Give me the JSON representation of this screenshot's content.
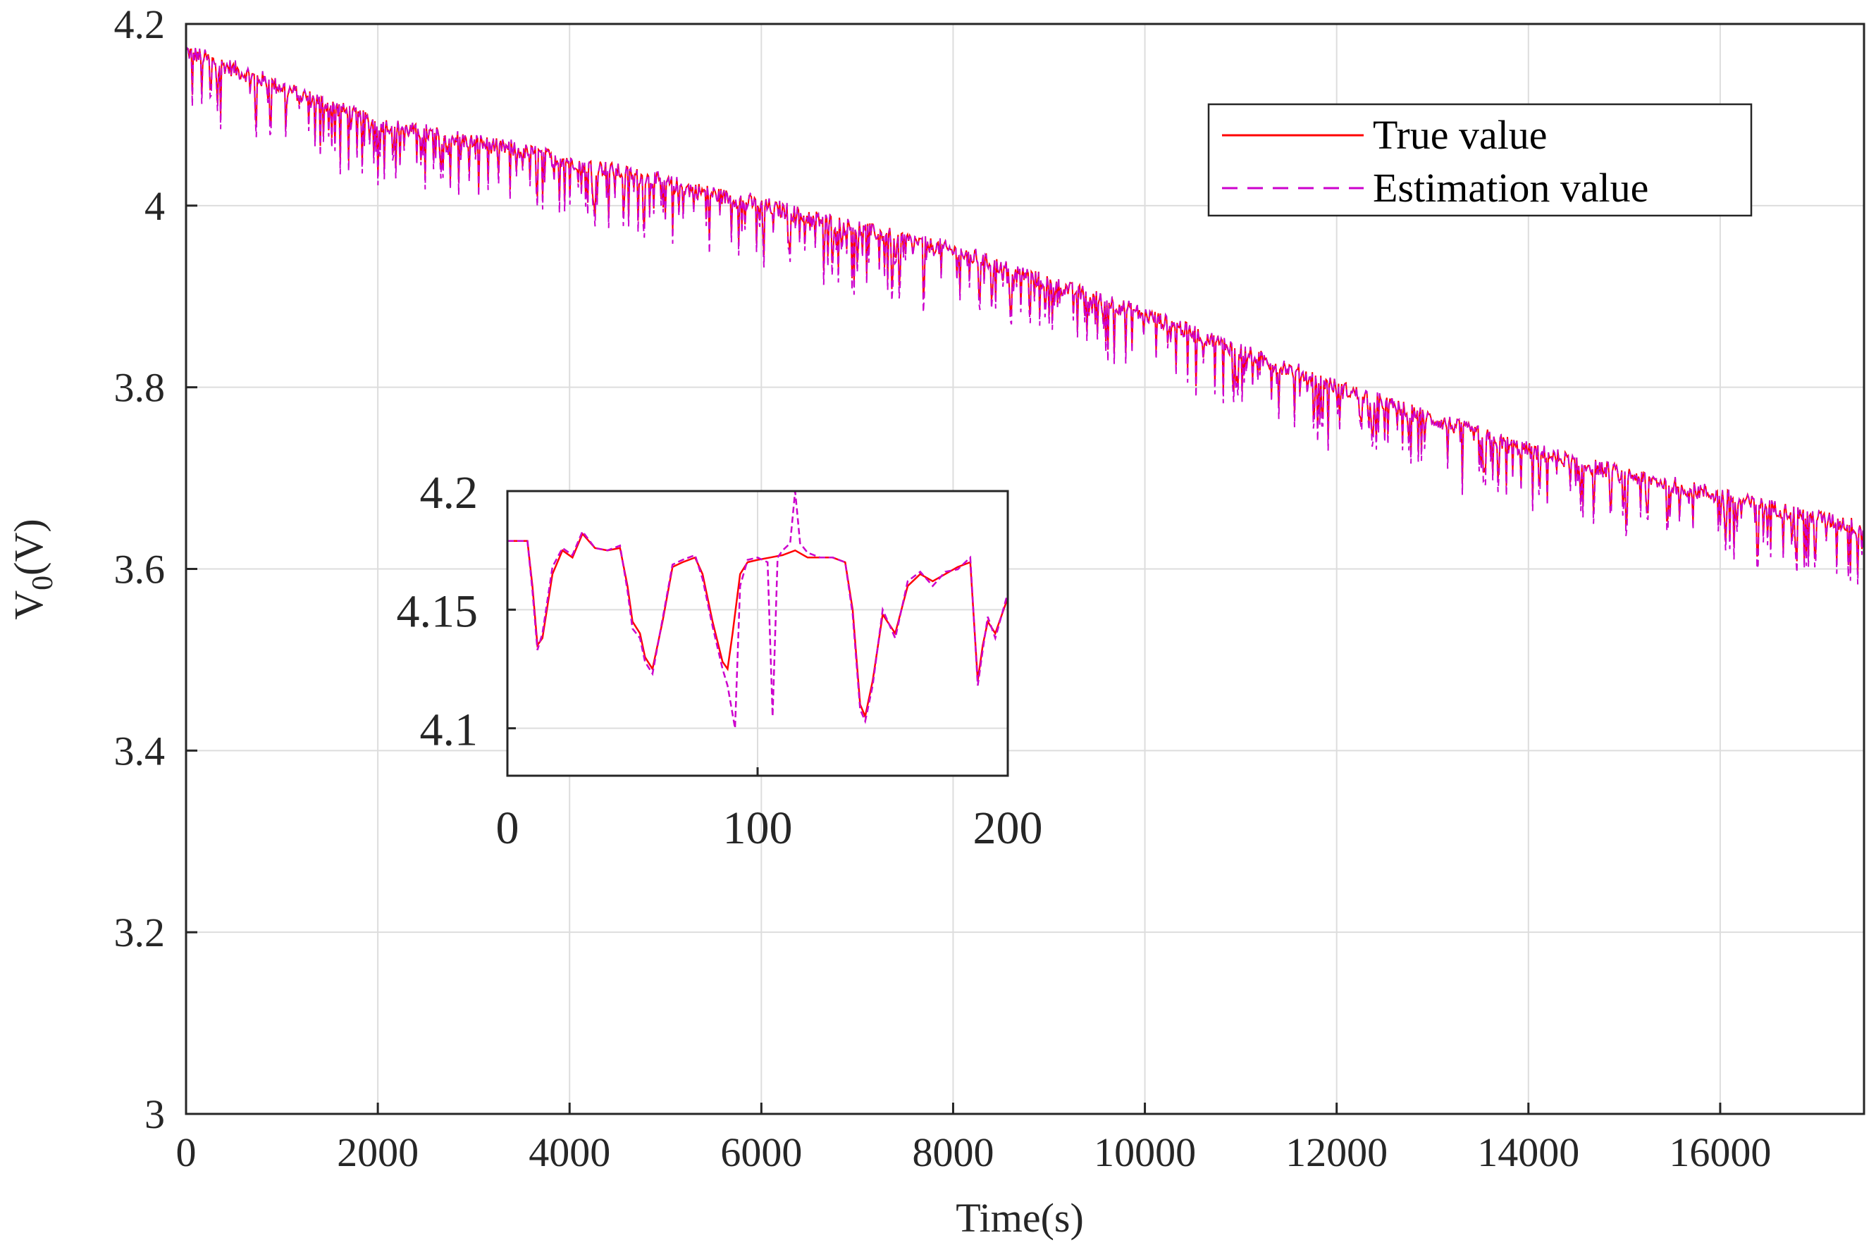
{
  "chart_data": [
    {
      "type": "line",
      "xlabel": "Time(s)",
      "ylabel_main": "V",
      "ylabel_sub": "0",
      "ylabel_unit": "(V)",
      "xlim": [
        0,
        17500
      ],
      "ylim": [
        3,
        4.2
      ],
      "xticks": [
        0,
        2000,
        4000,
        6000,
        8000,
        10000,
        12000,
        14000,
        16000
      ],
      "yticks": [
        3,
        3.2,
        3.4,
        3.6,
        3.8,
        4,
        4.2
      ],
      "xtick_labels": [
        "0",
        "2000",
        "4000",
        "6000",
        "8000",
        "10000",
        "12000",
        "14000",
        "16000"
      ],
      "ytick_labels": [
        "3",
        "3.2",
        "3.4",
        "3.6",
        "3.8",
        "4",
        "4.2"
      ],
      "grid": true,
      "legend_position": "top-right",
      "series": [
        {
          "name": "True value",
          "style": "solid",
          "color": "#ff0000",
          "trend_x": [
            0,
            2000,
            4000,
            6000,
            8000,
            10000,
            12000,
            14000,
            16000,
            17500
          ],
          "trend_y": [
            4.17,
            4.09,
            4.05,
            4.0,
            3.95,
            3.88,
            3.8,
            3.73,
            3.68,
            3.645
          ],
          "dip_depth": 0.04
        },
        {
          "name": "Estimation value",
          "style": "dashed",
          "color": "#cc00cc",
          "trend_x": [
            0,
            2000,
            4000,
            6000,
            8000,
            10000,
            12000,
            14000,
            16000,
            17500
          ],
          "trend_y": [
            4.17,
            4.09,
            4.05,
            4.0,
            3.95,
            3.88,
            3.8,
            3.73,
            3.68,
            3.645
          ],
          "dip_depth": 0.05
        }
      ]
    },
    {
      "type": "line",
      "role": "inset",
      "xlim": [
        0,
        200
      ],
      "ylim": [
        4.08,
        4.2
      ],
      "xticks": [
        0,
        100,
        200
      ],
      "yticks": [
        4.1,
        4.15,
        4.2
      ],
      "xtick_labels": [
        "0",
        "100",
        "200"
      ],
      "ytick_labels": [
        "4.1",
        "4.15",
        "4.2"
      ],
      "series": [
        {
          "name": "True value",
          "color": "#ff0000",
          "x": [
            0,
            8,
            10,
            12,
            14,
            18,
            22,
            26,
            30,
            35,
            40,
            45,
            48,
            50,
            53,
            55,
            58,
            62,
            66,
            70,
            75,
            78,
            82,
            86,
            88,
            90,
            93,
            96,
            100,
            105,
            110,
            115,
            120,
            125,
            130,
            135,
            138,
            141,
            143,
            146,
            150,
            155,
            160,
            165,
            170,
            175,
            180,
            185,
            188,
            190,
            192,
            195,
            200
          ],
          "y": [
            4.179,
            4.179,
            4.16,
            4.135,
            4.138,
            4.165,
            4.175,
            4.172,
            4.182,
            4.176,
            4.175,
            4.176,
            4.16,
            4.145,
            4.14,
            4.13,
            4.125,
            4.145,
            4.168,
            4.17,
            4.172,
            4.165,
            4.145,
            4.128,
            4.125,
            4.14,
            4.165,
            4.17,
            4.171,
            4.172,
            4.173,
            4.175,
            4.172,
            4.172,
            4.172,
            4.17,
            4.15,
            4.11,
            4.105,
            4.12,
            4.148,
            4.14,
            4.16,
            4.165,
            4.162,
            4.165,
            4.168,
            4.17,
            4.12,
            4.135,
            4.145,
            4.14,
            4.155
          ]
        },
        {
          "name": "Estimation value",
          "color": "#cc00cc",
          "x": [
            0,
            8,
            10,
            12,
            14,
            18,
            22,
            26,
            30,
            35,
            40,
            45,
            48,
            50,
            53,
            55,
            58,
            62,
            66,
            70,
            75,
            78,
            82,
            86,
            88,
            91,
            93,
            96,
            100,
            104,
            106,
            108,
            110,
            113,
            115,
            117,
            120,
            125,
            130,
            135,
            138,
            141,
            143,
            146,
            150,
            155,
            160,
            165,
            170,
            175,
            180,
            185,
            188,
            190,
            192,
            195,
            200
          ],
          "y": [
            4.179,
            4.179,
            4.158,
            4.133,
            4.14,
            4.168,
            4.176,
            4.173,
            4.183,
            4.176,
            4.175,
            4.177,
            4.158,
            4.142,
            4.138,
            4.128,
            4.123,
            4.146,
            4.169,
            4.171,
            4.173,
            4.163,
            4.143,
            4.125,
            4.118,
            4.1,
            4.16,
            4.171,
            4.172,
            4.17,
            4.105,
            4.172,
            4.175,
            4.178,
            4.2,
            4.178,
            4.174,
            4.172,
            4.172,
            4.17,
            4.148,
            4.108,
            4.103,
            4.118,
            4.15,
            4.138,
            4.162,
            4.166,
            4.16,
            4.166,
            4.167,
            4.172,
            4.118,
            4.133,
            4.147,
            4.138,
            4.157
          ]
        }
      ]
    }
  ]
}
